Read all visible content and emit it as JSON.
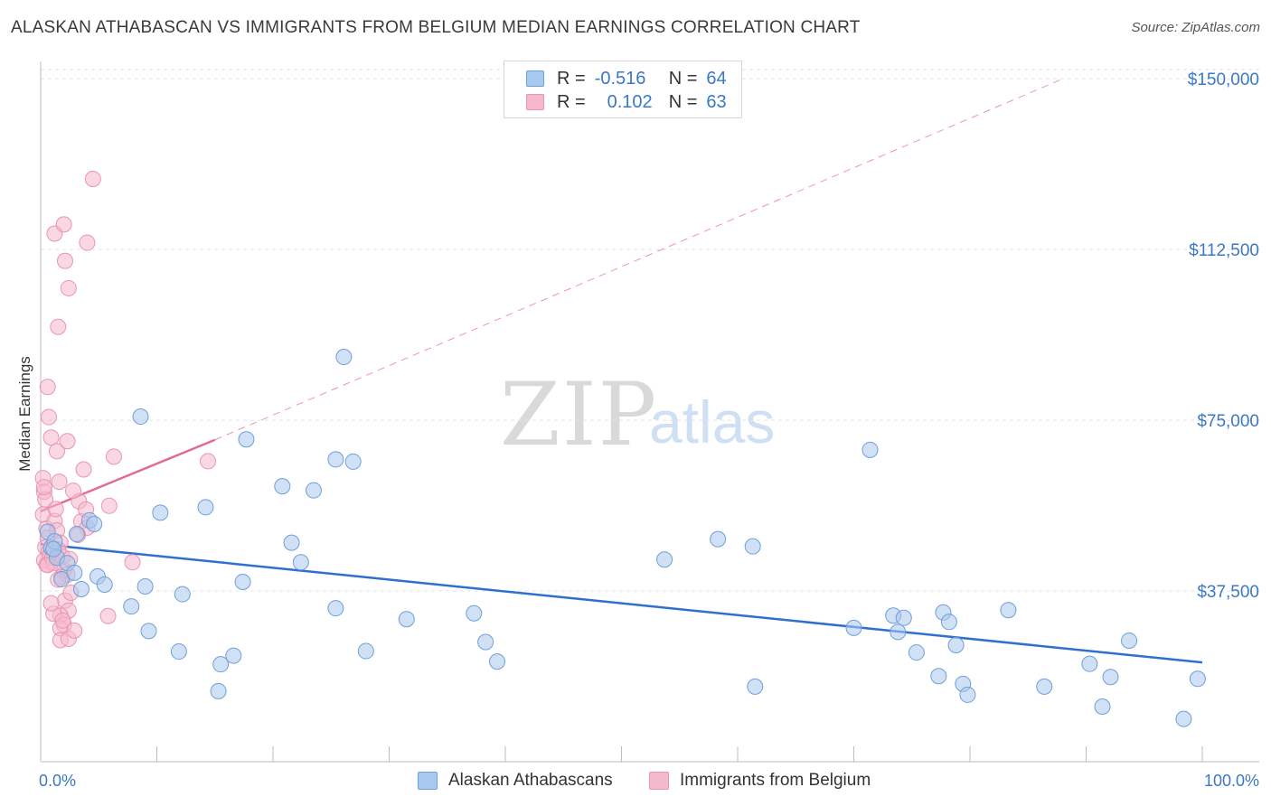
{
  "title": "ALASKAN ATHABASCAN VS IMMIGRANTS FROM BELGIUM MEDIAN EARNINGS CORRELATION CHART",
  "source": "Source: ZipAtlas.com",
  "watermark": {
    "zip": "ZIP",
    "atlas": "atlas"
  },
  "legend": {
    "rows": [
      {
        "r_label": "R =",
        "r_value": "-0.516",
        "n_label": "N =",
        "n_value": "64"
      },
      {
        "r_label": "R =",
        "r_value": "0.102",
        "n_label": "N =",
        "n_value": "63"
      }
    ]
  },
  "bottom_legend": [
    "Alaskan Athabascans",
    "Immigrants from Belgium"
  ],
  "colors": {
    "blue_fill": "#a9c8ee",
    "blue_stroke": "#6f9fd8",
    "blue_line": "#2f6fcf",
    "pink_fill": "#f6b8cc",
    "pink_stroke": "#e895b1",
    "pink_line": "#e36a92",
    "tick_text": "#3b78c6",
    "grid": "#e3e3e3"
  },
  "chart_data": {
    "type": "scatter",
    "title": "ALASKAN ATHABASCAN VS IMMIGRANTS FROM BELGIUM MEDIAN EARNINGS CORRELATION CHART",
    "xlabel": "",
    "ylabel": "Median Earnings",
    "x_tick_labels": [
      "0.0%",
      "100.0%"
    ],
    "y_tick_labels": [
      "$37,500",
      "$75,000",
      "$112,500",
      "$150,000"
    ],
    "y_ticks": [
      37500,
      75000,
      112500,
      150000
    ],
    "xlim": [
      0,
      100
    ],
    "ylim": [
      0,
      154000
    ],
    "grid": true,
    "legend_position": "top-center",
    "series": [
      {
        "name": "Alaskan Athabascans",
        "r": -0.516,
        "n": 64,
        "trend": {
          "x": [
            0,
            100
          ],
          "y": [
            47800,
            21800
          ]
        },
        "points": [
          [
            0.6,
            50500
          ],
          [
            0.9,
            47000
          ],
          [
            1.2,
            48400
          ],
          [
            1.4,
            44800
          ],
          [
            1.8,
            40100
          ],
          [
            2.3,
            43600
          ],
          [
            3.1,
            50000
          ],
          [
            3.5,
            37900
          ],
          [
            4.2,
            53000
          ],
          [
            4.6,
            52200
          ],
          [
            4.9,
            40700
          ],
          [
            5.5,
            38900
          ],
          [
            7.8,
            34100
          ],
          [
            8.6,
            75800
          ],
          [
            9.0,
            38500
          ],
          [
            9.3,
            28700
          ],
          [
            10.3,
            54700
          ],
          [
            11.9,
            24200
          ],
          [
            12.2,
            36800
          ],
          [
            14.2,
            55900
          ],
          [
            15.5,
            21400
          ],
          [
            15.3,
            15500
          ],
          [
            16.6,
            23300
          ],
          [
            17.4,
            39500
          ],
          [
            17.7,
            70800
          ],
          [
            20.8,
            60500
          ],
          [
            21.6,
            48100
          ],
          [
            22.4,
            43800
          ],
          [
            23.5,
            59600
          ],
          [
            25.4,
            66400
          ],
          [
            25.4,
            33700
          ],
          [
            26.1,
            88900
          ],
          [
            26.9,
            65900
          ],
          [
            28.0,
            24300
          ],
          [
            31.5,
            31300
          ],
          [
            37.3,
            32600
          ],
          [
            38.3,
            26300
          ],
          [
            39.3,
            22000
          ],
          [
            53.7,
            44400
          ],
          [
            58.3,
            48900
          ],
          [
            61.5,
            16500
          ],
          [
            61.3,
            47300
          ],
          [
            70.0,
            29400
          ],
          [
            71.4,
            68500
          ],
          [
            73.4,
            32100
          ],
          [
            73.8,
            28500
          ],
          [
            74.3,
            31600
          ],
          [
            75.4,
            24000
          ],
          [
            77.3,
            18800
          ],
          [
            77.7,
            32800
          ],
          [
            78.2,
            30700
          ],
          [
            78.8,
            25600
          ],
          [
            79.4,
            17100
          ],
          [
            79.8,
            14700
          ],
          [
            83.3,
            33300
          ],
          [
            86.4,
            16500
          ],
          [
            90.3,
            21500
          ],
          [
            91.4,
            12100
          ],
          [
            92.1,
            18600
          ],
          [
            93.7,
            26600
          ],
          [
            98.4,
            9400
          ],
          [
            99.6,
            18200
          ],
          [
            1.1,
            46700
          ],
          [
            2.9,
            41500
          ]
        ]
      },
      {
        "name": "Immigrants from Belgium",
        "r": 0.102,
        "n": 63,
        "trend_solid": {
          "x": [
            0,
            15
          ],
          "y": [
            55000,
            70700
          ]
        },
        "trend_dashed": {
          "x": [
            15,
            88
          ],
          "y": [
            70700,
            150000
          ]
        },
        "points": [
          [
            0.2,
            62300
          ],
          [
            0.3,
            59300
          ],
          [
            0.4,
            57600
          ],
          [
            0.2,
            54300
          ],
          [
            0.5,
            51200
          ],
          [
            0.6,
            49200
          ],
          [
            0.4,
            47100
          ],
          [
            0.7,
            46100
          ],
          [
            0.3,
            44200
          ],
          [
            0.5,
            43300
          ],
          [
            0.8,
            45400
          ],
          [
            1.0,
            44800
          ],
          [
            1.1,
            43600
          ],
          [
            0.6,
            82300
          ],
          [
            0.7,
            75700
          ],
          [
            0.9,
            71200
          ],
          [
            1.4,
            68200
          ],
          [
            1.6,
            61500
          ],
          [
            1.2,
            52900
          ],
          [
            1.4,
            50800
          ],
          [
            1.7,
            48100
          ],
          [
            1.5,
            46600
          ],
          [
            1.9,
            45000
          ],
          [
            2.0,
            42000
          ],
          [
            1.8,
            40600
          ],
          [
            2.3,
            41100
          ],
          [
            2.1,
            35400
          ],
          [
            2.4,
            33200
          ],
          [
            1.7,
            32100
          ],
          [
            1.1,
            32500
          ],
          [
            2.0,
            30100
          ],
          [
            1.7,
            29300
          ],
          [
            1.7,
            26700
          ],
          [
            2.4,
            27000
          ],
          [
            2.9,
            28800
          ],
          [
            2.6,
            37100
          ],
          [
            2.3,
            70400
          ],
          [
            3.3,
            57200
          ],
          [
            2.8,
            59500
          ],
          [
            3.5,
            52800
          ],
          [
            3.9,
            55400
          ],
          [
            4.0,
            51400
          ],
          [
            3.7,
            64200
          ],
          [
            5.9,
            56200
          ],
          [
            5.8,
            32000
          ],
          [
            6.3,
            67000
          ],
          [
            7.9,
            43800
          ],
          [
            14.4,
            66000
          ],
          [
            1.2,
            116000
          ],
          [
            2.0,
            118000
          ],
          [
            2.1,
            110000
          ],
          [
            2.4,
            104000
          ],
          [
            4.0,
            114000
          ],
          [
            4.5,
            128000
          ],
          [
            1.5,
            95500
          ],
          [
            0.3,
            60300
          ],
          [
            1.3,
            55500
          ],
          [
            0.6,
            43200
          ],
          [
            1.5,
            40000
          ],
          [
            2.5,
            44500
          ],
          [
            0.9,
            34800
          ],
          [
            3.2,
            49800
          ],
          [
            1.9,
            31000
          ]
        ]
      }
    ]
  }
}
